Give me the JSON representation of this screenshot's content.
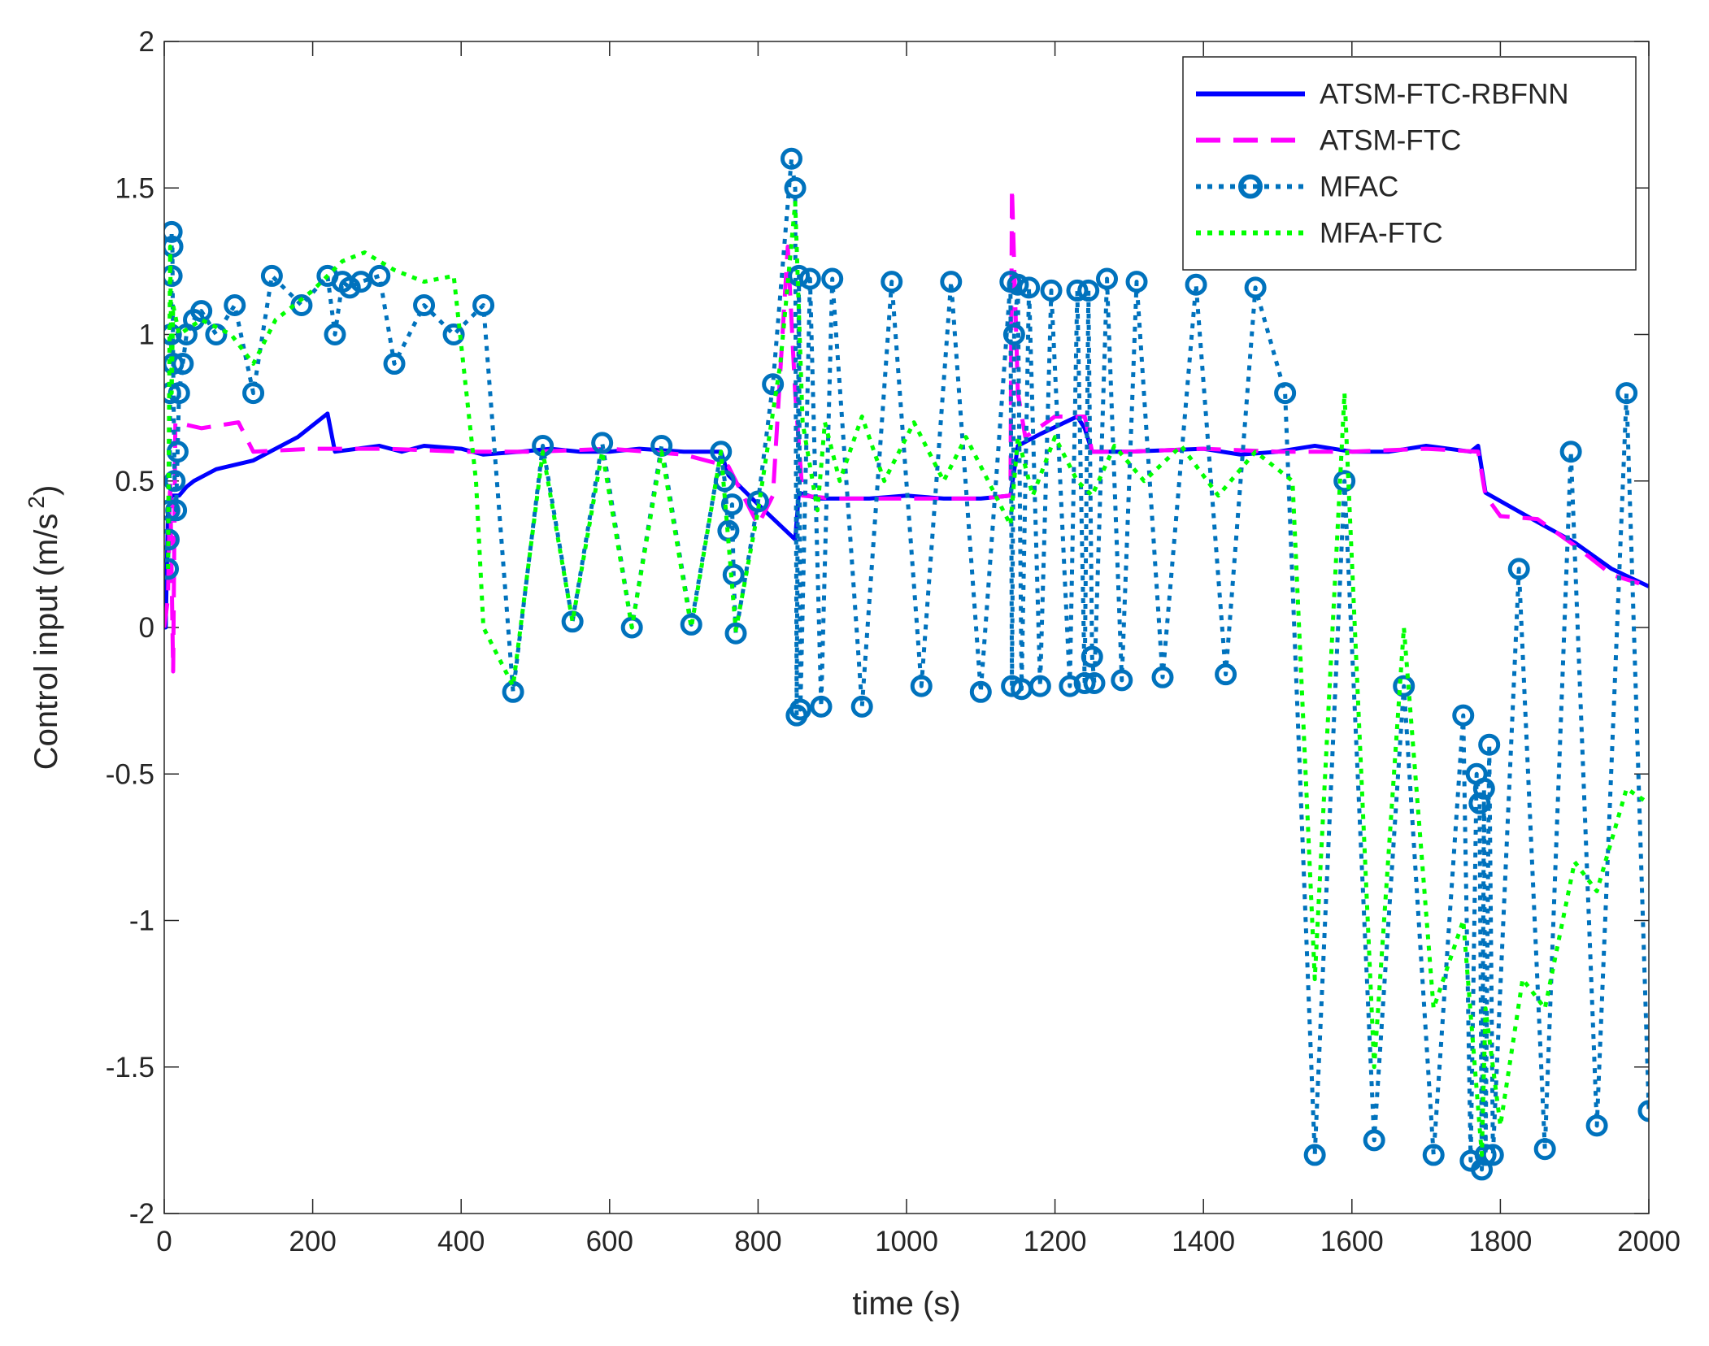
{
  "chart_data": {
    "type": "line",
    "xlabel": "time (s)",
    "ylabel": {
      "text": "Control input (m/s",
      "sup": "2",
      "end": ")"
    },
    "xlim": [
      0,
      2000
    ],
    "ylim": [
      -2,
      2
    ],
    "xticks": [
      0,
      200,
      400,
      600,
      800,
      1000,
      1200,
      1400,
      1600,
      1800,
      2000
    ],
    "yticks": [
      -2,
      -1.5,
      -1,
      -0.5,
      0,
      0.5,
      1,
      1.5,
      2
    ],
    "legend": "upper right",
    "series": [
      {
        "name": "ATSM-FTC-RBFNN",
        "color": "#0000ff",
        "style": "solid",
        "x": [
          0,
          2,
          5,
          10,
          20,
          30,
          40,
          70,
          120,
          180,
          220,
          230,
          260,
          290,
          320,
          350,
          400,
          430,
          480,
          520,
          560,
          600,
          640,
          700,
          750,
          760,
          800,
          850,
          855,
          880,
          950,
          1000,
          1050,
          1100,
          1140,
          1150,
          1180,
          1230,
          1240,
          1250,
          1300,
          1400,
          1450,
          1500,
          1550,
          1600,
          1650,
          1700,
          1760,
          1770,
          1780,
          1850,
          1900,
          1950,
          2000
        ],
        "values": [
          0,
          0,
          0.4,
          0.45,
          0.45,
          0.48,
          0.5,
          0.54,
          0.57,
          0.65,
          0.73,
          0.6,
          0.61,
          0.62,
          0.6,
          0.62,
          0.61,
          0.59,
          0.6,
          0.61,
          0.6,
          0.6,
          0.61,
          0.6,
          0.6,
          0.52,
          0.42,
          0.3,
          0.46,
          0.44,
          0.44,
          0.45,
          0.44,
          0.44,
          0.45,
          0.62,
          0.66,
          0.72,
          0.68,
          0.6,
          0.6,
          0.61,
          0.59,
          0.6,
          0.62,
          0.6,
          0.6,
          0.62,
          0.6,
          0.62,
          0.46,
          0.36,
          0.29,
          0.2,
          0.14
        ]
      },
      {
        "name": "ATSM-FTC",
        "color": "#ff00ff",
        "style": "dashed",
        "x": [
          0,
          5,
          8,
          12,
          15,
          50,
          100,
          120,
          200,
          240,
          300,
          400,
          500,
          600,
          700,
          760,
          780,
          800,
          820,
          840,
          850,
          860,
          900,
          1000,
          1100,
          1140,
          1142,
          1150,
          1160,
          1200,
          1240,
          1250,
          1300,
          1400,
          1500,
          1600,
          1700,
          1770,
          1780,
          1800,
          1850,
          1900,
          1950,
          2000
        ],
        "values": [
          0,
          0.1,
          0.5,
          -0.15,
          0.7,
          0.68,
          0.7,
          0.6,
          0.61,
          0.61,
          0.61,
          0.6,
          0.6,
          0.61,
          0.59,
          0.55,
          0.45,
          0.35,
          0.45,
          1.3,
          0.8,
          0.45,
          0.44,
          0.44,
          0.44,
          0.45,
          1.5,
          0.8,
          0.65,
          0.72,
          0.72,
          0.6,
          0.6,
          0.61,
          0.6,
          0.6,
          0.61,
          0.6,
          0.45,
          0.38,
          0.37,
          0.28,
          0.18,
          0.14
        ]
      },
      {
        "name": "MFAC",
        "color": "#0072bd",
        "style": "dotted",
        "marker": "circle",
        "x": [
          5,
          6,
          7,
          8,
          9,
          10,
          10,
          11,
          12,
          14,
          16,
          18,
          20,
          25,
          30,
          40,
          50,
          70,
          95,
          120,
          145,
          185,
          220,
          230,
          240,
          250,
          265,
          290,
          310,
          350,
          390,
          430,
          470,
          510,
          550,
          590,
          630,
          670,
          710,
          750,
          755,
          760,
          765,
          767,
          770,
          800,
          820,
          845,
          850,
          852,
          855,
          857,
          870,
          885,
          900,
          940,
          980,
          1020,
          1060,
          1100,
          1140,
          1142,
          1145,
          1150,
          1155,
          1165,
          1180,
          1195,
          1220,
          1230,
          1240,
          1245,
          1250,
          1253,
          1270,
          1290,
          1310,
          1345,
          1390,
          1430,
          1470,
          1510,
          1550,
          1590,
          1630,
          1670,
          1710,
          1750,
          1760,
          1768,
          1772,
          1775,
          1778,
          1780,
          1785,
          1790,
          1825,
          1860,
          1895,
          1930,
          1970,
          2000
        ],
        "values": [
          0.2,
          0.3,
          0.4,
          0.8,
          1.0,
          1.2,
          1.35,
          1.3,
          0.9,
          0.5,
          0.4,
          0.6,
          0.8,
          0.9,
          1.0,
          1.05,
          1.08,
          1.0,
          1.1,
          0.8,
          1.2,
          1.1,
          1.2,
          1.0,
          1.18,
          1.16,
          1.18,
          1.2,
          0.9,
          1.1,
          1.0,
          1.1,
          -0.22,
          0.62,
          0.02,
          0.63,
          0.0,
          0.62,
          0.01,
          0.6,
          0.5,
          0.33,
          0.42,
          0.18,
          -0.02,
          0.43,
          0.83,
          1.6,
          1.5,
          -0.3,
          1.2,
          -0.28,
          1.19,
          -0.27,
          1.19,
          -0.27,
          1.18,
          -0.2,
          1.18,
          -0.22,
          1.18,
          -0.2,
          1.0,
          1.17,
          -0.21,
          1.16,
          -0.2,
          1.15,
          -0.2,
          1.15,
          -0.19,
          1.15,
          -0.1,
          -0.19,
          1.19,
          -0.18,
          1.18,
          -0.17,
          1.17,
          -0.16,
          1.16,
          0.8,
          -1.8,
          0.5,
          -1.75,
          -0.2,
          -1.8,
          -0.3,
          -1.82,
          -0.5,
          -0.6,
          -1.85,
          -0.55,
          -1.8,
          -0.4,
          -1.8,
          0.2,
          -1.78,
          0.6,
          -1.7,
          0.8,
          -1.65
        ]
      },
      {
        "name": "MFA-FTC",
        "color": "#00ff00",
        "style": "dotted",
        "x": [
          5,
          8,
          10,
          12,
          20,
          50,
          90,
          120,
          150,
          200,
          240,
          270,
          310,
          350,
          390,
          420,
          430,
          470,
          510,
          550,
          590,
          630,
          670,
          710,
          750,
          770,
          800,
          830,
          850,
          860,
          880,
          890,
          910,
          940,
          970,
          1010,
          1050,
          1080,
          1110,
          1140,
          1150,
          1170,
          1200,
          1230,
          1250,
          1280,
          1320,
          1370,
          1420,
          1470,
          1520,
          1550,
          1590,
          1630,
          1670,
          1710,
          1750,
          1775,
          1780,
          1800,
          1830,
          1860,
          1900,
          1930,
          1970,
          2000
        ],
        "values": [
          0.2,
          1.3,
          0.8,
          1.1,
          1.0,
          1.05,
          1.0,
          0.9,
          1.05,
          1.15,
          1.25,
          1.28,
          1.22,
          1.18,
          1.2,
          0.5,
          0.0,
          -0.2,
          0.6,
          0.02,
          0.6,
          0.0,
          0.6,
          0.0,
          0.6,
          -0.01,
          0.4,
          0.9,
          1.45,
          0.7,
          0.4,
          0.7,
          0.5,
          0.72,
          0.5,
          0.7,
          0.5,
          0.65,
          0.5,
          0.35,
          0.65,
          0.45,
          0.65,
          0.5,
          0.45,
          0.62,
          0.5,
          0.62,
          0.45,
          0.6,
          0.5,
          -1.2,
          0.8,
          -1.5,
          0.0,
          -1.3,
          -1.0,
          -1.8,
          -1.3,
          -1.7,
          -1.2,
          -1.3,
          -0.8,
          -0.9,
          -0.55,
          -0.6
        ]
      }
    ]
  }
}
